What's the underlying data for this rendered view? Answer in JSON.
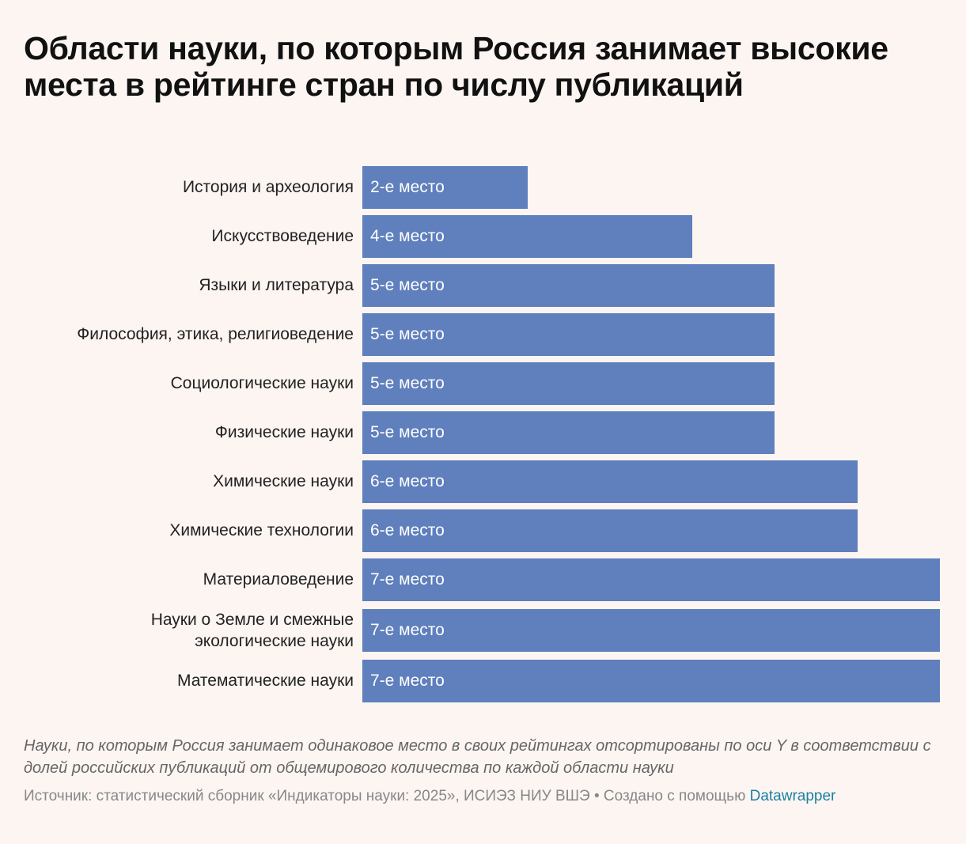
{
  "title": "Области науки, по которым Россия занимает высокие места в рейтинге стран по числу публикаций",
  "chart_data": {
    "type": "bar",
    "orientation": "horizontal",
    "title": "Области науки, по которым Россия занимает высокие места в рейтинге стран по числу публикаций",
    "categories": [
      "История и археология",
      "Искусствоведение",
      "Языки и литература",
      "Философия, этика, религиоведение",
      "Социологические науки",
      "Физические науки",
      "Химические науки",
      "Химические технологии",
      "Материаловедение",
      "Науки о Земле и смежные\nэкологические науки",
      "Математические науки"
    ],
    "values": [
      2,
      4,
      5,
      5,
      5,
      5,
      6,
      6,
      7,
      7,
      7
    ],
    "data_labels": [
      "2-е место",
      "4-е место",
      "5-е место",
      "5-е место",
      "5-е место",
      "5-е место",
      "6-е место",
      "6-е место",
      "7-е место",
      "7-е место",
      "7-е место"
    ],
    "xlim": [
      0,
      7
    ],
    "grid": false,
    "bar_color": "#5f7fbd"
  },
  "note": "Науки, по которым Россия занимает одинаковое место в своих рейтингах отсортированы по оси Y в соответствии с долей российских публикаций от общемирового количества по каждой области науки",
  "source": "Источник: статистический сборник «Индикаторы науки: 2025», ИСИЭЗ НИУ ВШЭ • Создано с помощью",
  "credit_link": "Datawrapper"
}
